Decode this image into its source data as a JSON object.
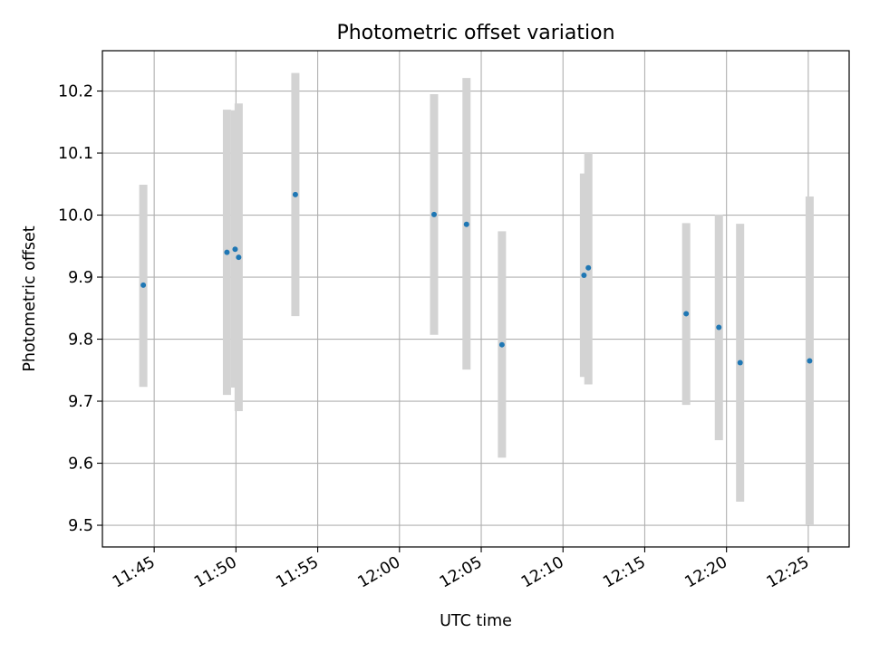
{
  "chart_data": {
    "type": "scatter",
    "title": "Photometric offset variation",
    "xlabel": "UTC time",
    "ylabel": "Photometric offset",
    "xlim": [
      "11:41:50",
      "12:27:30"
    ],
    "ylim": [
      9.465,
      10.265
    ],
    "x_ticks": [
      "11:45",
      "11:50",
      "11:55",
      "12:00",
      "12:05",
      "12:10",
      "12:15",
      "12:20",
      "12:25"
    ],
    "y_ticks": [
      "9.5",
      "9.6",
      "9.7",
      "9.8",
      "9.9",
      "10.0",
      "10.1",
      "10.2"
    ],
    "grid": true,
    "colors": {
      "point": "#1f77b4",
      "errorbar": "#d3d3d3",
      "grid": "#b0b0b0"
    },
    "points": [
      {
        "x": "11:44:20",
        "y": 9.887,
        "yerr_low": 9.723,
        "yerr_high": 10.049
      },
      {
        "x": "11:49:27",
        "y": 9.94,
        "yerr_low": 9.71,
        "yerr_high": 10.17
      },
      {
        "x": "11:49:57",
        "y": 9.945,
        "yerr_low": 9.722,
        "yerr_high": 10.169
      },
      {
        "x": "11:50:10",
        "y": 9.932,
        "yerr_low": 9.684,
        "yerr_high": 10.18
      },
      {
        "x": "11:53:38",
        "y": 10.033,
        "yerr_low": 9.837,
        "yerr_high": 10.229
      },
      {
        "x": "12:02:07",
        "y": 10.001,
        "yerr_low": 9.807,
        "yerr_high": 10.195
      },
      {
        "x": "12:04:06",
        "y": 9.985,
        "yerr_low": 9.751,
        "yerr_high": 10.221
      },
      {
        "x": "12:06:16",
        "y": 9.791,
        "yerr_low": 9.609,
        "yerr_high": 9.974
      },
      {
        "x": "12:11:17",
        "y": 9.903,
        "yerr_low": 9.739,
        "yerr_high": 10.067
      },
      {
        "x": "12:11:33",
        "y": 9.915,
        "yerr_low": 9.727,
        "yerr_high": 10.1
      },
      {
        "x": "12:17:32",
        "y": 9.841,
        "yerr_low": 9.694,
        "yerr_high": 9.987
      },
      {
        "x": "12:19:32",
        "y": 9.819,
        "yerr_low": 9.637,
        "yerr_high": 10.001
      },
      {
        "x": "12:20:50",
        "y": 9.762,
        "yerr_low": 9.538,
        "yerr_high": 9.986
      },
      {
        "x": "12:25:05",
        "y": 9.765,
        "yerr_low": 9.5,
        "yerr_high": 10.03
      }
    ]
  }
}
